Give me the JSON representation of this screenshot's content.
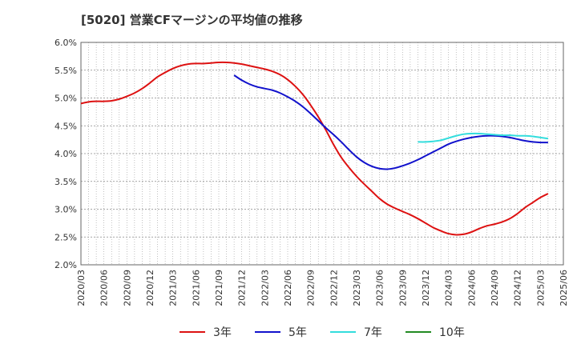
{
  "chart_data": {
    "type": "line",
    "title": "[5020]  営業CFマージンの平均値の推移",
    "xlabel": "",
    "ylabel": "",
    "x_ticks": [
      "2020/03",
      "2020/06",
      "2020/09",
      "2020/12",
      "2021/03",
      "2021/06",
      "2021/09",
      "2021/12",
      "2022/03",
      "2022/06",
      "2022/09",
      "2022/12",
      "2023/03",
      "2023/06",
      "2023/09",
      "2023/12",
      "2024/03",
      "2024/06",
      "2024/09",
      "2024/12",
      "2025/03",
      "2025/06"
    ],
    "y_ticks": [
      "2.0%",
      "2.5%",
      "3.0%",
      "3.5%",
      "4.0%",
      "4.5%",
      "5.0%",
      "5.5%",
      "6.0%"
    ],
    "ylim": [
      2.0,
      6.0
    ],
    "grid": true,
    "legend_position": "bottom",
    "series": [
      {
        "name": "3年",
        "color": "#dd1111",
        "points": [
          [
            "2020/03",
            4.9
          ],
          [
            "2020/04",
            4.93
          ],
          [
            "2020/05",
            4.94
          ],
          [
            "2020/06",
            4.94
          ],
          [
            "2020/07",
            4.95
          ],
          [
            "2020/08",
            4.98
          ],
          [
            "2020/09",
            5.03
          ],
          [
            "2020/10",
            5.09
          ],
          [
            "2020/11",
            5.17
          ],
          [
            "2020/12",
            5.27
          ],
          [
            "2021/01",
            5.38
          ],
          [
            "2021/02",
            5.46
          ],
          [
            "2021/03",
            5.53
          ],
          [
            "2021/04",
            5.58
          ],
          [
            "2021/05",
            5.61
          ],
          [
            "2021/06",
            5.62
          ],
          [
            "2021/07",
            5.62
          ],
          [
            "2021/08",
            5.63
          ],
          [
            "2021/09",
            5.64
          ],
          [
            "2021/10",
            5.64
          ],
          [
            "2021/11",
            5.63
          ],
          [
            "2021/12",
            5.61
          ],
          [
            "2022/01",
            5.58
          ],
          [
            "2022/02",
            5.55
          ],
          [
            "2022/03",
            5.52
          ],
          [
            "2022/04",
            5.48
          ],
          [
            "2022/05",
            5.42
          ],
          [
            "2022/06",
            5.33
          ],
          [
            "2022/07",
            5.21
          ],
          [
            "2022/08",
            5.06
          ],
          [
            "2022/09",
            4.87
          ],
          [
            "2022/10",
            4.66
          ],
          [
            "2022/11",
            4.42
          ],
          [
            "2022/12",
            4.16
          ],
          [
            "2023/01",
            3.93
          ],
          [
            "2023/02",
            3.75
          ],
          [
            "2023/03",
            3.59
          ],
          [
            "2023/04",
            3.45
          ],
          [
            "2023/05",
            3.32
          ],
          [
            "2023/06",
            3.19
          ],
          [
            "2023/07",
            3.09
          ],
          [
            "2023/08",
            3.02
          ],
          [
            "2023/09",
            2.96
          ],
          [
            "2023/10",
            2.9
          ],
          [
            "2023/11",
            2.83
          ],
          [
            "2023/12",
            2.75
          ],
          [
            "2024/01",
            2.67
          ],
          [
            "2024/02",
            2.61
          ],
          [
            "2024/03",
            2.56
          ],
          [
            "2024/04",
            2.54
          ],
          [
            "2024/05",
            2.55
          ],
          [
            "2024/06",
            2.59
          ],
          [
            "2024/07",
            2.65
          ],
          [
            "2024/08",
            2.7
          ],
          [
            "2024/09",
            2.73
          ],
          [
            "2024/10",
            2.77
          ],
          [
            "2024/11",
            2.83
          ],
          [
            "2024/12",
            2.92
          ],
          [
            "2025/01",
            3.03
          ],
          [
            "2025/02",
            3.12
          ],
          [
            "2025/03",
            3.21
          ],
          [
            "2025/04",
            3.28
          ]
        ]
      },
      {
        "name": "5年",
        "color": "#1111cc",
        "points": [
          [
            "2021/11",
            5.41
          ],
          [
            "2021/12",
            5.32
          ],
          [
            "2022/01",
            5.25
          ],
          [
            "2022/02",
            5.2
          ],
          [
            "2022/03",
            5.17
          ],
          [
            "2022/04",
            5.14
          ],
          [
            "2022/05",
            5.09
          ],
          [
            "2022/06",
            5.02
          ],
          [
            "2022/07",
            4.94
          ],
          [
            "2022/08",
            4.84
          ],
          [
            "2022/09",
            4.72
          ],
          [
            "2022/10",
            4.59
          ],
          [
            "2022/11",
            4.46
          ],
          [
            "2022/12",
            4.34
          ],
          [
            "2023/01",
            4.21
          ],
          [
            "2023/02",
            4.07
          ],
          [
            "2023/03",
            3.94
          ],
          [
            "2023/04",
            3.84
          ],
          [
            "2023/05",
            3.77
          ],
          [
            "2023/06",
            3.73
          ],
          [
            "2023/07",
            3.72
          ],
          [
            "2023/08",
            3.74
          ],
          [
            "2023/09",
            3.78
          ],
          [
            "2023/10",
            3.83
          ],
          [
            "2023/11",
            3.89
          ],
          [
            "2023/12",
            3.96
          ],
          [
            "2024/01",
            4.03
          ],
          [
            "2024/02",
            4.1
          ],
          [
            "2024/03",
            4.17
          ],
          [
            "2024/04",
            4.22
          ],
          [
            "2024/05",
            4.26
          ],
          [
            "2024/06",
            4.29
          ],
          [
            "2024/07",
            4.31
          ],
          [
            "2024/08",
            4.32
          ],
          [
            "2024/09",
            4.32
          ],
          [
            "2024/10",
            4.31
          ],
          [
            "2024/11",
            4.29
          ],
          [
            "2024/12",
            4.26
          ],
          [
            "2025/01",
            4.23
          ],
          [
            "2025/02",
            4.21
          ],
          [
            "2025/03",
            4.2
          ],
          [
            "2025/04",
            4.2
          ]
        ]
      },
      {
        "name": "7年",
        "color": "#33dddd",
        "points": [
          [
            "2023/11",
            4.21
          ],
          [
            "2023/12",
            4.21
          ],
          [
            "2024/01",
            4.22
          ],
          [
            "2024/02",
            4.24
          ],
          [
            "2024/03",
            4.28
          ],
          [
            "2024/04",
            4.32
          ],
          [
            "2024/05",
            4.35
          ],
          [
            "2024/06",
            4.36
          ],
          [
            "2024/07",
            4.36
          ],
          [
            "2024/08",
            4.35
          ],
          [
            "2024/09",
            4.34
          ],
          [
            "2024/10",
            4.33
          ],
          [
            "2024/11",
            4.33
          ],
          [
            "2024/12",
            4.32
          ],
          [
            "2025/01",
            4.32
          ],
          [
            "2025/02",
            4.31
          ],
          [
            "2025/03",
            4.29
          ],
          [
            "2025/04",
            4.27
          ]
        ]
      },
      {
        "name": "10年",
        "color": "#228b22",
        "points": []
      }
    ]
  }
}
